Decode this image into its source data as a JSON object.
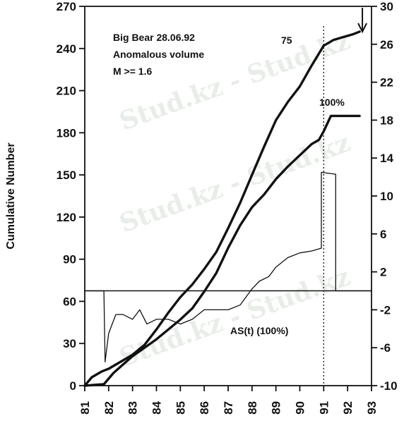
{
  "chart_data": {
    "type": "line",
    "title_lines": [
      "Big Bear 28.06.92",
      "Anomalous volume",
      "M >= 1.6"
    ],
    "ylabel": "Cumulative Number",
    "xlabel": "",
    "x_ticks": [
      "81",
      "82",
      "83",
      "84",
      "85",
      "86",
      "87",
      "88",
      "89",
      "90",
      "91",
      "92",
      "93"
    ],
    "xlim": [
      81,
      93
    ],
    "y_left_ticks": [
      "0",
      "30",
      "60",
      "90",
      "120",
      "150",
      "180",
      "210",
      "240",
      "270"
    ],
    "ylim_left": [
      0,
      270
    ],
    "y_right_ticks": [
      "-10",
      "-6",
      "-2",
      "2",
      "6",
      "10",
      "14",
      "18",
      "22",
      "26",
      "30"
    ],
    "ylim_right": [
      -10,
      30
    ],
    "grid": false,
    "event_marker_x": 91.0,
    "mainshock_arrow_x": 92.5,
    "annotations": {
      "upper_curve_label": "75",
      "lower_curve_label": "100%",
      "as_label": "AS(t)  (100%)"
    },
    "series": [
      {
        "axis": "left",
        "style": "thick",
        "x": [
          81.0,
          81.3,
          81.7,
          82.0,
          82.5,
          83.0,
          83.5,
          84.0,
          84.5,
          85.0,
          85.5,
          86.0,
          86.5,
          87.0,
          87.5,
          88.0,
          88.5,
          89.0,
          89.5,
          90.0,
          90.5,
          91.0,
          91.4,
          91.8,
          92.2,
          92.5
        ],
        "y": [
          0,
          6,
          10,
          12,
          17,
          22,
          29,
          40,
          52,
          63,
          72,
          83,
          95,
          112,
          130,
          150,
          170,
          189,
          202,
          213,
          228,
          242,
          246,
          248,
          250,
          252
        ]
      },
      {
        "axis": "left",
        "style": "thick",
        "x": [
          81.0,
          81.8,
          82.2,
          82.6,
          83.0,
          83.5,
          84.0,
          84.5,
          85.0,
          85.5,
          86.0,
          86.5,
          87.0,
          87.5,
          88.0,
          88.5,
          89.0,
          89.5,
          90.0,
          90.5,
          90.8,
          91.0,
          91.3,
          92.5
        ],
        "y": [
          0,
          1,
          9,
          15,
          21,
          27,
          33,
          40,
          47,
          55,
          67,
          80,
          98,
          114,
          127,
          136,
          147,
          156,
          164,
          172,
          175,
          181,
          192,
          192
        ]
      },
      {
        "axis": "right",
        "style": "thin",
        "x": [
          81.0,
          81.8,
          81.85,
          82.0,
          82.3,
          82.6,
          83.0,
          83.3,
          83.6,
          84.0,
          84.5,
          85.0,
          85.5,
          86.0,
          86.5,
          87.0,
          87.5,
          88.0,
          88.3,
          88.7,
          89.0,
          89.5,
          90.0,
          90.5,
          90.9,
          90.9,
          91.5,
          91.5,
          93.0
        ],
        "y": [
          0,
          0,
          -7.5,
          -4.5,
          -2.5,
          -2.5,
          -3.0,
          -2.0,
          -3.5,
          -3.0,
          -3.0,
          -3.5,
          -3.0,
          -2.0,
          -2.0,
          -2.0,
          -1.5,
          0.2,
          1.0,
          1.5,
          2.5,
          3.5,
          4.0,
          4.2,
          4.5,
          12.5,
          12.3,
          0,
          0
        ]
      }
    ]
  }
}
